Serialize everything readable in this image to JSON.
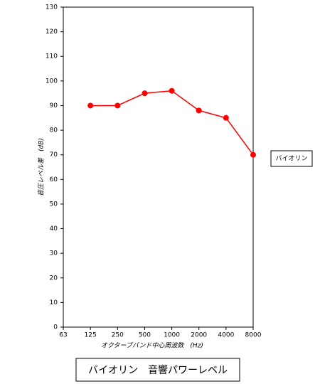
{
  "chart_data": {
    "type": "line",
    "x_label": "オクターブバンド中心周波数　(Hz)",
    "y_label": "音圧レベル差　(dB)",
    "categories": [
      "63",
      "125",
      "250",
      "500",
      "1000",
      "2000",
      "4000",
      "8000"
    ],
    "series": [
      {
        "name": "バイオリン",
        "color": "#ff0000",
        "values": [
          null,
          90,
          90,
          95,
          96,
          88,
          85,
          70
        ]
      }
    ],
    "ylim": [
      0,
      130
    ],
    "yticks": [
      0,
      10,
      20,
      30,
      40,
      50,
      60,
      70,
      80,
      90,
      100,
      110,
      120,
      130
    ],
    "grid": false,
    "legend": "right",
    "caption": "バイオリン　音響パワーレベル"
  }
}
